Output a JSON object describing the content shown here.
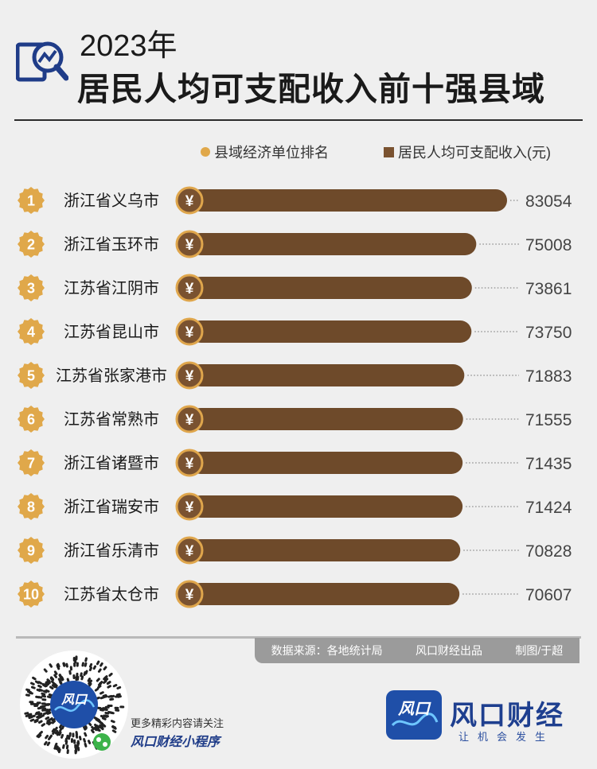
{
  "header": {
    "year": "2023年",
    "title": "居民人均可支配收入前十强县域"
  },
  "legend": {
    "rank_label": "县域经济单位排名",
    "income_label": "居民人均可支配收入(元)"
  },
  "colors": {
    "bar": "#6e4a2a",
    "rank_badge": "#e0a84a",
    "yuan_badge_ring": "#dfa64c",
    "yuan_badge_fill": "#7a5230",
    "leader": "#8a8a8a"
  },
  "yuan_symbol": "¥",
  "chart_data": {
    "type": "bar",
    "orientation": "horizontal",
    "title": "居民人均可支配收入前十强县域",
    "categories": [
      "浙江省义乌市",
      "浙江省玉环市",
      "江苏省江阴市",
      "江苏省昆山市",
      "江苏省张家港市",
      "江苏省常熟市",
      "浙江省诸暨市",
      "浙江省瑞安市",
      "浙江省乐清市",
      "江苏省太仓市"
    ],
    "ranks": [
      "1",
      "2",
      "3",
      "4",
      "5",
      "6",
      "7",
      "8",
      "9",
      "10"
    ],
    "values": [
      83054,
      75008,
      73861,
      73750,
      71883,
      71555,
      71435,
      71424,
      70828,
      70607
    ],
    "series": [
      {
        "name": "居民人均可支配收入(元)",
        "values": [
          83054,
          75008,
          73861,
          73750,
          71883,
          71555,
          71435,
          71424,
          70828,
          70607
        ]
      }
    ],
    "grid": false,
    "legend_position": "top"
  },
  "footer": {
    "source": "数据来源：各地统计局",
    "producer": "风口财经出品",
    "author": "制图/于超",
    "qr_line1": "更多精彩内容请关注",
    "qr_line2": "风口财经小程序",
    "qr_badge": "风口",
    "brand_name": "风口财经",
    "brand_slogan": "让机会发生",
    "brand_logo_text": "风口"
  }
}
